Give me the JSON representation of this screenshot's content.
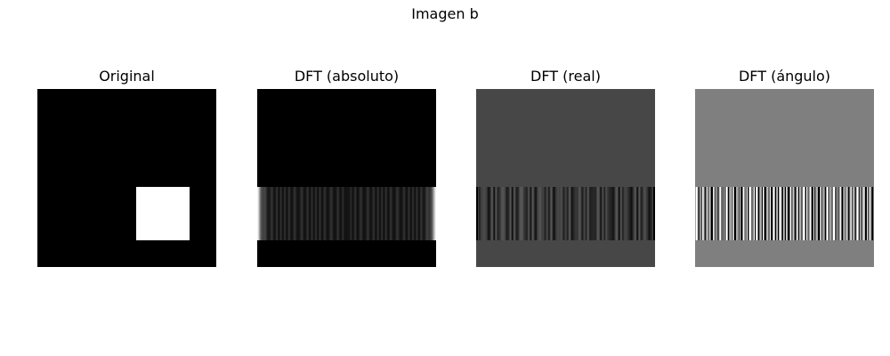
{
  "figure": {
    "title": "Imagen b"
  },
  "panels": [
    {
      "id": "original",
      "title": "Original"
    },
    {
      "id": "dft-abs",
      "title": "DFT (absoluto)"
    },
    {
      "id": "dft-real",
      "title": "DFT (real)"
    },
    {
      "id": "dft-angle",
      "title": "DFT (ángulo)"
    }
  ],
  "colors": {
    "background": "#ffffff",
    "black": "#000000",
    "white": "#ffffff",
    "real_background": "#474747",
    "angle_background": "#7f7f7f"
  }
}
